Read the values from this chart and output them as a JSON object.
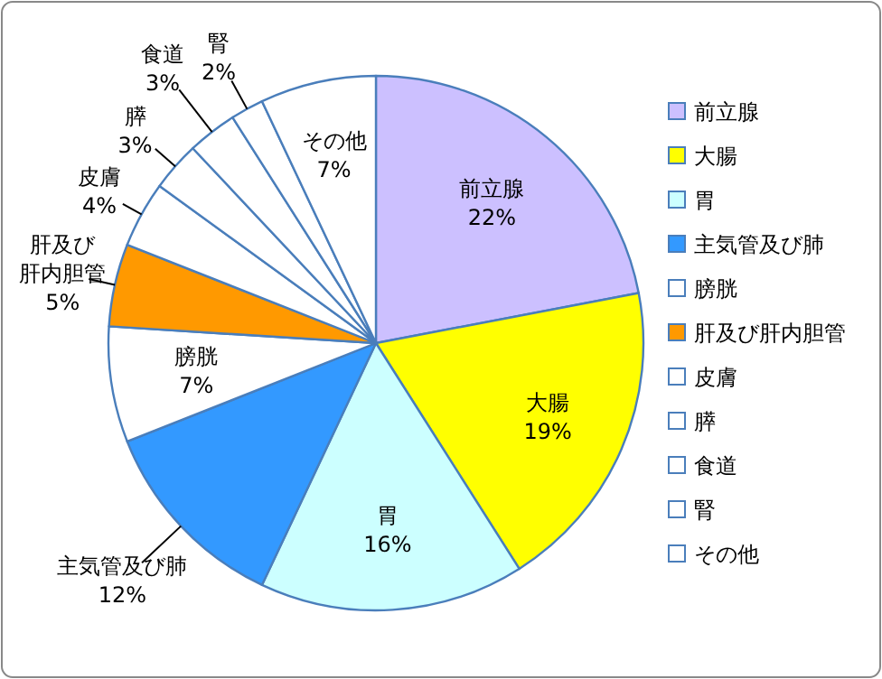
{
  "chart_data": {
    "type": "pie",
    "categories": [
      "前立腺",
      "大腸",
      "胃",
      "主気管及び肺",
      "膀胱",
      "肝及び肝内胆管",
      "皮膚",
      "膵",
      "食道",
      "腎",
      "その他"
    ],
    "values": [
      22,
      19,
      16,
      12,
      7,
      5,
      4,
      3,
      3,
      2,
      7
    ],
    "colors": [
      "#ccc0ff",
      "#ffff00",
      "#ccffff",
      "#3399ff",
      "#ffffff",
      "#ff9900",
      "#ffffff",
      "#ffffff",
      "#ffffff",
      "#ffffff",
      "#ffffff"
    ],
    "value_labels": [
      "22%",
      "19%",
      "16%",
      "12%",
      "7%",
      "5%",
      "4%",
      "3%",
      "3%",
      "2%",
      "7%"
    ],
    "legend": "right"
  }
}
